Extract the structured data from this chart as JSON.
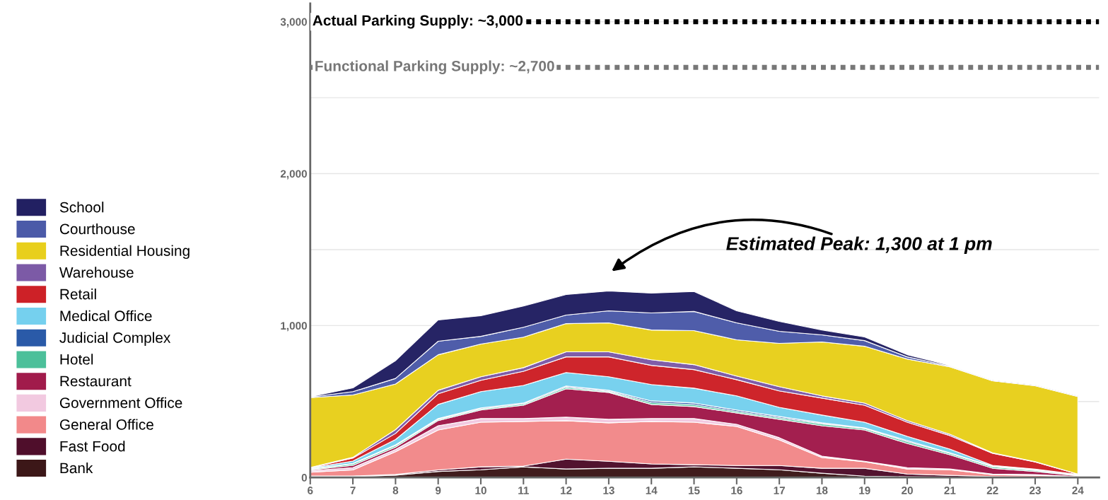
{
  "chart_data": {
    "type": "area",
    "stacked": true,
    "x": [
      6,
      7,
      8,
      9,
      10,
      11,
      12,
      13,
      14,
      15,
      16,
      17,
      18,
      19,
      20,
      21,
      22,
      23,
      24
    ],
    "series": [
      {
        "name": "Bank",
        "color": "#3c1718",
        "values": [
          5,
          5,
          15,
          40,
          51,
          70,
          56,
          61,
          61,
          70,
          61,
          51,
          28,
          9,
          5,
          3,
          2,
          1,
          1
        ]
      },
      {
        "name": "Fast Food",
        "color": "#4f0e2b",
        "values": [
          5,
          5,
          5,
          10,
          19,
          5,
          65,
          46,
          28,
          14,
          18,
          28,
          33,
          52,
          18,
          11,
          5,
          3,
          1
        ]
      },
      {
        "name": "General Office",
        "color": "#f2898a",
        "values": [
          25,
          40,
          150,
          263,
          294,
          294,
          253,
          253,
          280,
          280,
          257,
          169,
          70,
          42,
          33,
          37,
          12,
          10,
          3
        ]
      },
      {
        "name": "Government Office",
        "color": "#f2c9e0",
        "values": [
          10,
          15,
          15,
          28,
          24,
          19,
          23,
          23,
          19,
          24,
          14,
          14,
          9,
          4,
          9,
          5,
          4,
          5,
          2
        ]
      },
      {
        "name": "Restaurant",
        "color": "#a11b4b",
        "values": [
          5,
          15,
          15,
          34,
          56,
          88,
          187,
          177,
          93,
          79,
          75,
          121,
          201,
          206,
          159,
          94,
          38,
          20,
          5
        ]
      },
      {
        "name": "Hotel",
        "color": "#4cc09a",
        "values": [
          5,
          10,
          10,
          8,
          8,
          8,
          10,
          7,
          12,
          12,
          10,
          10,
          12,
          9,
          12,
          9,
          10,
          8,
          5
        ]
      },
      {
        "name": "Judicial Complex",
        "color": "#2a5aa8",
        "values": [
          2,
          3,
          5,
          5,
          6,
          6,
          8,
          7,
          11,
          11,
          9,
          9,
          7,
          5,
          7,
          4,
          4,
          3,
          1
        ]
      },
      {
        "name": "Medical Office",
        "color": "#75d0ee",
        "values": [
          5,
          15,
          35,
          93,
          107,
          116,
          89,
          89,
          108,
          98,
          93,
          60,
          51,
          37,
          28,
          24,
          5,
          5,
          2
        ]
      },
      {
        "name": "Retail",
        "color": "#cd2127",
        "values": [
          2,
          20,
          40,
          70,
          75,
          93,
          103,
          131,
          126,
          122,
          107,
          108,
          112,
          112,
          93,
          89,
          79,
          47,
          2
        ]
      },
      {
        "name": "Warehouse",
        "color": "#7c5aa6",
        "values": [
          2,
          5,
          25,
          23,
          23,
          24,
          33,
          33,
          37,
          33,
          24,
          28,
          14,
          14,
          10,
          9,
          4,
          2,
          1
        ]
      },
      {
        "name": "Residential Housing",
        "color": "#e8cf1c",
        "values": [
          460,
          410,
          300,
          234,
          215,
          201,
          186,
          191,
          196,
          224,
          238,
          285,
          355,
          374,
          406,
          443,
          473,
          500,
          510
        ]
      },
      {
        "name": "Courthouse",
        "color": "#4b5aa8",
        "values": [
          3,
          22,
          37,
          89,
          51,
          65,
          56,
          79,
          112,
          126,
          112,
          79,
          47,
          37,
          14,
          5,
          2,
          2,
          2
        ]
      },
      {
        "name": "School",
        "color": "#222062",
        "values": [
          3,
          25,
          117,
          140,
          136,
          140,
          135,
          131,
          131,
          131,
          79,
          65,
          32,
          24,
          14,
          5,
          2,
          2,
          2
        ]
      }
    ],
    "xlim": [
      6,
      24.5
    ],
    "xticks": [
      6,
      7,
      8,
      9,
      10,
      11,
      12,
      13,
      14,
      15,
      16,
      17,
      18,
      19,
      20,
      21,
      22,
      23,
      24
    ],
    "ylim": [
      0,
      3120
    ],
    "yticks": [
      0,
      {
        "value": 500,
        "label": null
      },
      {
        "value": 1000,
        "label": "1,000"
      },
      {
        "value": 1500,
        "label": null
      },
      {
        "value": 2000,
        "label": "2,000"
      },
      {
        "value": 2500,
        "label": null
      },
      {
        "value": 3000,
        "label": "3,000"
      }
    ],
    "grid": "y",
    "legend": "left",
    "ref_lines": [
      {
        "axis": "y",
        "value": 3000,
        "label": "Actual Parking Supply: ~3,000",
        "color": "#000000",
        "line_style": "dotted"
      },
      {
        "axis": "y",
        "value": 2700,
        "label": "Functional Parking Supply: ~2,700",
        "color": "#777777",
        "line_style": "dotted"
      }
    ],
    "annotations": [
      "Estimated Peak: 1,300 at 1 pm"
    ]
  }
}
